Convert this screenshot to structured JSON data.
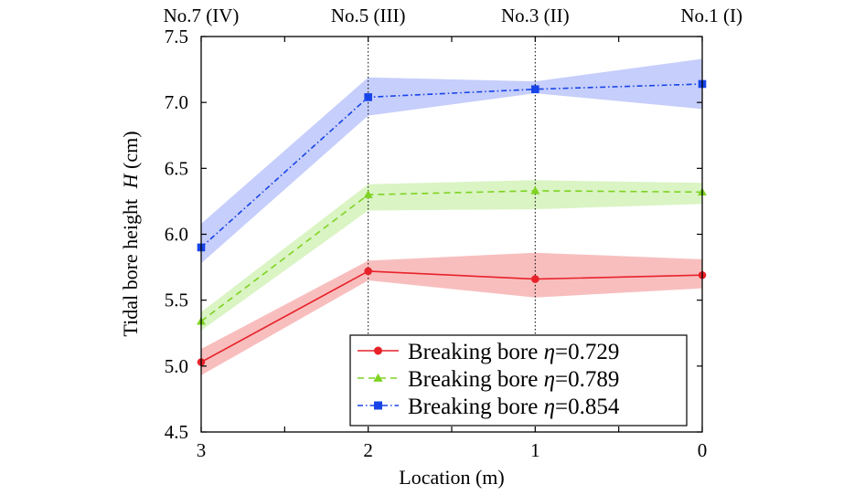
{
  "chart_data": {
    "type": "line",
    "xlabel": "Location (m)",
    "ylabel": "Tidal bore height",
    "ylabel_var": "H",
    "ylabel_unit": " (cm)",
    "x_reversed": true,
    "xlim": [
      0,
      3
    ],
    "ylim": [
      4.5,
      7.5
    ],
    "x_ticks": [
      3,
      2.5,
      2,
      1.5,
      1,
      0.5,
      0
    ],
    "x_tick_labels": [
      {
        "x": 3,
        "label": "3"
      },
      {
        "x": 2,
        "label": "2"
      },
      {
        "x": 1,
        "label": "1"
      },
      {
        "x": 0,
        "label": "0"
      }
    ],
    "y_ticks": [
      4.5,
      5.0,
      5.5,
      6.0,
      6.5,
      7.0,
      7.5
    ],
    "y_tick_labels": [
      "4.5",
      "5.0",
      "5.5",
      "6.0",
      "6.5",
      "7.0",
      "7.5"
    ],
    "top_labels": [
      {
        "x": 3,
        "label": "No.7 (IV)"
      },
      {
        "x": 2,
        "label": "No.5 (III)"
      },
      {
        "x": 1,
        "label": "No.3 (II)"
      },
      {
        "x": 0,
        "label": "No.1 (I)"
      }
    ],
    "vlines": [
      2,
      1
    ],
    "legend_position": "bottom-right",
    "x": [
      3,
      2,
      1,
      0
    ],
    "series": [
      {
        "name": "Breaking bore η=0.729",
        "name_prefix": "Breaking bore ",
        "name_var": "η",
        "name_value": "=0.729",
        "color": "#e8222a",
        "band_color": "#f6a8a8",
        "marker": "circle",
        "dash": "solid",
        "values": [
          5.03,
          5.72,
          5.66,
          5.69
        ],
        "lower": [
          4.93,
          5.65,
          5.52,
          5.59
        ],
        "upper": [
          5.13,
          5.8,
          5.86,
          5.81
        ]
      },
      {
        "name": "Breaking bore η=0.789",
        "name_prefix": "Breaking bore ",
        "name_var": "η",
        "name_value": "=0.789",
        "color": "#7ed321",
        "band_color": "#cdf0b0",
        "marker": "triangle",
        "dash": "dashed",
        "values": [
          5.34,
          6.3,
          6.33,
          6.32
        ],
        "lower": [
          5.27,
          6.18,
          6.19,
          6.23
        ],
        "upper": [
          5.41,
          6.38,
          6.41,
          6.39
        ]
      },
      {
        "name": "Breaking bore η=0.854",
        "name_prefix": "Breaking bore ",
        "name_var": "η",
        "name_value": "=0.854",
        "color": "#1744e8",
        "band_color": "#b3befa",
        "marker": "square",
        "dash": "dashdot",
        "values": [
          5.9,
          7.04,
          7.1,
          7.14
        ],
        "lower": [
          5.78,
          6.9,
          7.07,
          6.95
        ],
        "upper": [
          6.08,
          7.19,
          7.16,
          7.33
        ]
      }
    ]
  }
}
